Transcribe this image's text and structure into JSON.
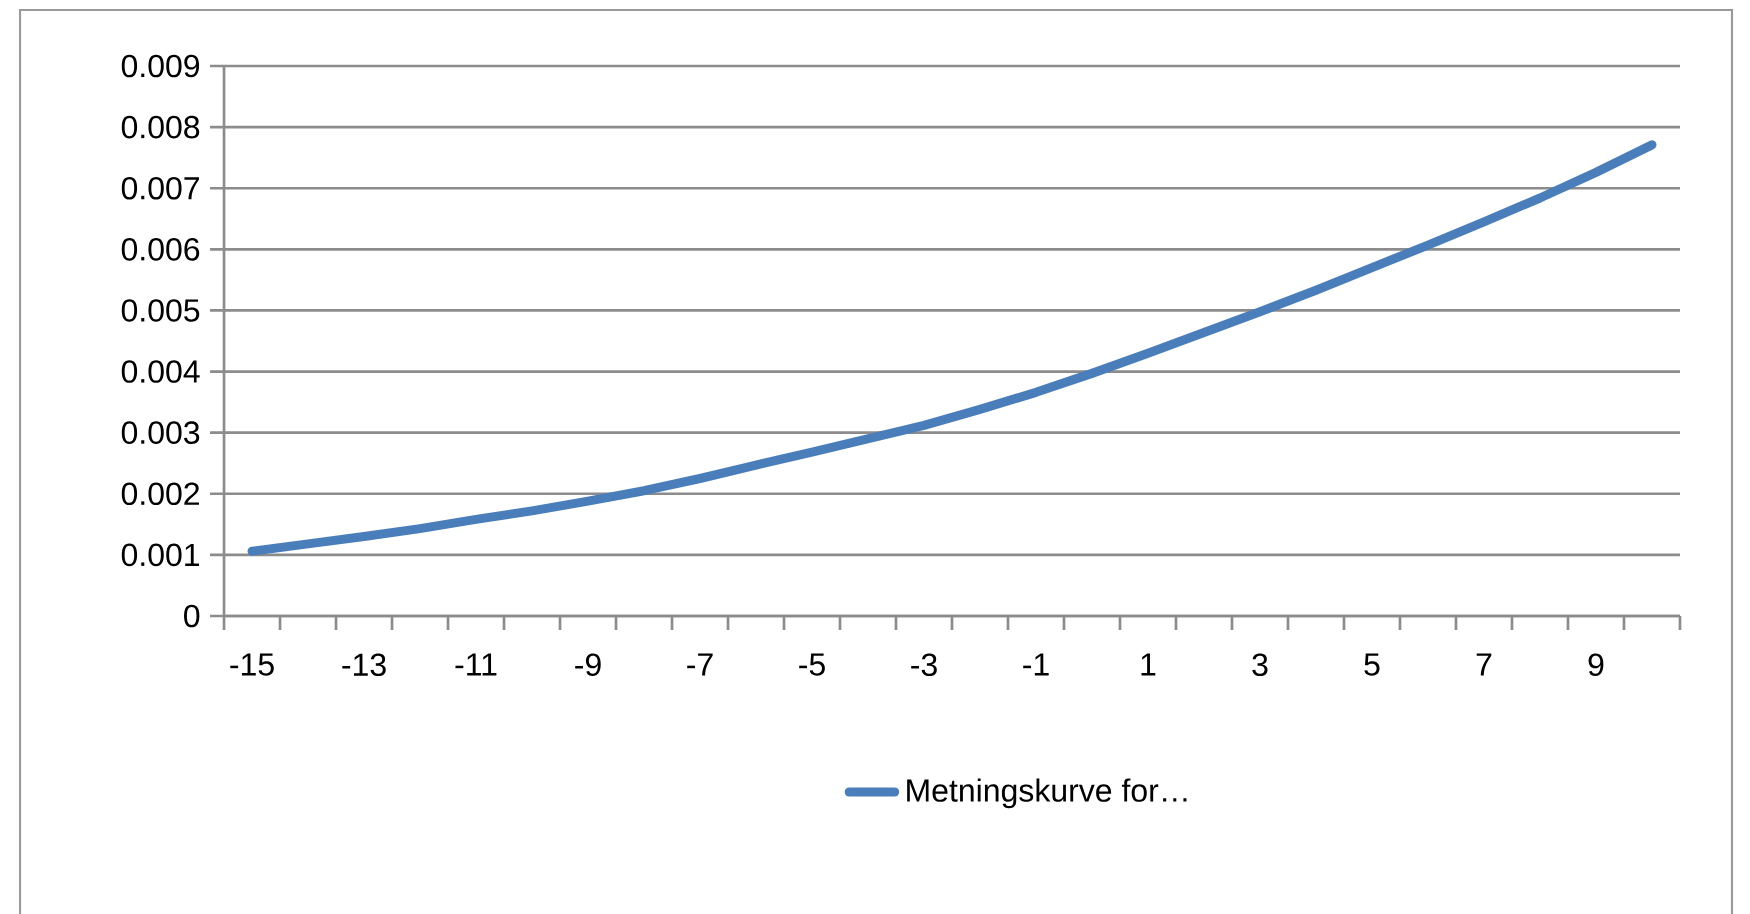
{
  "chart_data": {
    "type": "line",
    "categories": [
      "-15",
      null,
      "-13",
      null,
      "-11",
      null,
      "-9",
      null,
      "-7",
      null,
      "-5",
      null,
      "-3",
      null,
      "-1",
      null,
      "1",
      null,
      "3",
      null,
      "5",
      null,
      "7",
      null,
      "9",
      null
    ],
    "series": [
      {
        "name": "Metningskurve for…",
        "color": "#4a7ebb",
        "values": [
          0.00106,
          0.00118,
          0.0013,
          0.00143,
          0.00158,
          0.00172,
          0.00188,
          0.00205,
          0.00225,
          0.00247,
          0.00268,
          0.0029,
          0.00312,
          0.00338,
          0.00366,
          0.00397,
          0.0043,
          0.00464,
          0.00498,
          0.00533,
          0.0057,
          0.00607,
          0.00645,
          0.00684,
          0.00726,
          0.00771
        ]
      }
    ],
    "ylim": [
      0,
      0.009
    ],
    "yticks": [
      0,
      0.001,
      0.002,
      0.003,
      0.004,
      0.005,
      0.006,
      0.007,
      0.008,
      0.009
    ],
    "grid": "y",
    "legend": "bottom",
    "marker": "none",
    "line_style": "solid"
  }
}
